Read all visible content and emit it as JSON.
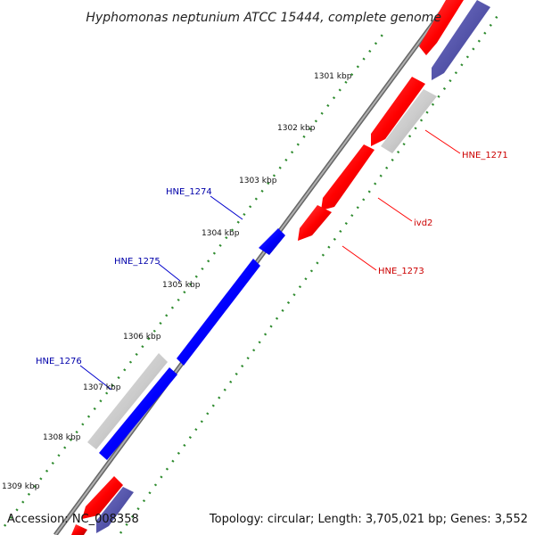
{
  "title": "Hyphomonas neptunium ATCC 15444, complete genome",
  "footer": {
    "accession": "Accession: NC_008358",
    "topology": "Topology: circular; Length: 3,705,021 bp; Genes: 3,552"
  },
  "ticks": [
    "1301 kbp",
    "1302 kbp",
    "1303 kbp",
    "1304 kbp",
    "1305 kbp",
    "1306 kbp",
    "1307 kbp",
    "1308 kbp",
    "1309 kbp"
  ],
  "gene_labels": [
    {
      "name": "HNE_1271",
      "color": "#cc0000"
    },
    {
      "name": "ivd2",
      "color": "#cc0000"
    },
    {
      "name": "HNE_1273",
      "color": "#cc0000"
    },
    {
      "name": "HNE_1274",
      "color": "#0000aa"
    },
    {
      "name": "HNE_1275",
      "color": "#0000aa"
    },
    {
      "name": "HNE_1276",
      "color": "#0000aa"
    }
  ],
  "colors": {
    "forward_cds": "#ff0000",
    "reverse_cds": "#0000ff",
    "gene_gray": "#cccccc",
    "rna_purple": "#5555aa",
    "backbone": "#888888",
    "gc_dots": "#2e8b2e"
  }
}
